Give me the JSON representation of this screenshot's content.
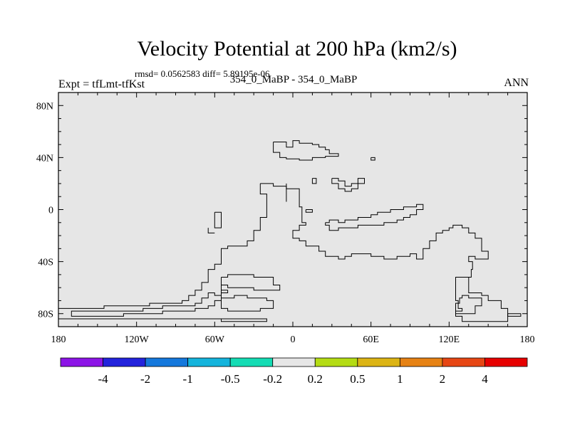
{
  "chart_data": {
    "type": "contour-map",
    "title": "Velocity Potential at 200 hPa (km2/s)",
    "stats": "rmsd= 0.0562583 diff= 5.89195e-06",
    "left_label": "Expt = tfLmt-tfKst",
    "center_label": "354_0_MaBP - 354_0_MaBP",
    "right_label": "ANN",
    "x_ticks": [
      {
        "value": -180,
        "label": "180"
      },
      {
        "value": -120,
        "label": "120W"
      },
      {
        "value": -60,
        "label": "60W"
      },
      {
        "value": 0,
        "label": "0"
      },
      {
        "value": 60,
        "label": "60E"
      },
      {
        "value": 120,
        "label": "120E"
      },
      {
        "value": 180,
        "label": "180"
      }
    ],
    "y_ticks": [
      {
        "value": 80,
        "label": "80N"
      },
      {
        "value": 40,
        "label": "40N"
      },
      {
        "value": 0,
        "label": "0"
      },
      {
        "value": -40,
        "label": "40S"
      },
      {
        "value": -80,
        "label": "80S"
      }
    ],
    "xlim": [
      -180,
      180
    ],
    "ylim": [
      -90,
      90
    ],
    "field_color": "#e6e6e6",
    "colorbar": {
      "colors": [
        "#8c14e6",
        "#2323dc",
        "#1478dc",
        "#14b4dc",
        "#14dcb4",
        "#e6e6e6",
        "#b4dc14",
        "#dcb414",
        "#e68214",
        "#e64614",
        "#e60000"
      ],
      "labels": [
        "-4",
        "-2",
        "-1",
        "-0.5",
        "-0.2",
        "0.2",
        "0.5",
        "1",
        "2",
        "4"
      ]
    },
    "contours": [
      [
        [
          -15,
          52
        ],
        [
          -5,
          52
        ],
        [
          -5,
          48
        ],
        [
          0,
          48
        ],
        [
          0,
          53
        ],
        [
          5,
          53
        ],
        [
          5,
          51
        ],
        [
          15,
          51
        ],
        [
          15,
          50
        ],
        [
          20,
          50
        ],
        [
          20,
          48
        ],
        [
          25,
          48
        ],
        [
          25,
          46
        ],
        [
          28,
          46
        ],
        [
          28,
          43
        ],
        [
          35,
          43
        ],
        [
          35,
          41
        ],
        [
          25,
          41
        ],
        [
          25,
          40
        ],
        [
          15,
          40
        ],
        [
          15,
          38
        ],
        [
          5,
          38
        ],
        [
          5,
          39
        ],
        [
          -5,
          39
        ],
        [
          -5,
          40
        ],
        [
          -10,
          40
        ],
        [
          -10,
          44
        ],
        [
          -15,
          44
        ],
        [
          -15,
          52
        ]
      ],
      [
        [
          60,
          40
        ],
        [
          63,
          40
        ],
        [
          63,
          38
        ],
        [
          60,
          38
        ],
        [
          60,
          40
        ]
      ],
      [
        [
          -25,
          20
        ],
        [
          -15,
          20
        ],
        [
          -15,
          18
        ],
        [
          -5,
          18
        ],
        [
          -5,
          16
        ],
        [
          5,
          16
        ],
        [
          5,
          2
        ],
        [
          7,
          2
        ],
        [
          7,
          -10
        ],
        [
          10,
          -10
        ],
        [
          10,
          -12
        ],
        [
          5,
          -12
        ],
        [
          5,
          -16
        ],
        [
          0,
          -16
        ],
        [
          0,
          -22
        ],
        [
          5,
          -22
        ],
        [
          5,
          -24
        ],
        [
          10,
          -24
        ],
        [
          10,
          -28
        ],
        [
          20,
          -28
        ],
        [
          20,
          -32
        ],
        [
          25,
          -32
        ],
        [
          25,
          -36
        ],
        [
          35,
          -36
        ],
        [
          35,
          -38
        ],
        [
          40,
          -38
        ],
        [
          40,
          -36
        ],
        [
          45,
          -36
        ],
        [
          45,
          -34
        ],
        [
          60,
          -34
        ],
        [
          60,
          -36
        ],
        [
          70,
          -36
        ],
        [
          70,
          -38
        ],
        [
          80,
          -38
        ],
        [
          80,
          -36
        ],
        [
          90,
          -36
        ],
        [
          90,
          -34
        ],
        [
          95,
          -34
        ],
        [
          95,
          -38
        ],
        [
          100,
          -38
        ],
        [
          100,
          -30
        ],
        [
          105,
          -30
        ],
        [
          105,
          -24
        ],
        [
          110,
          -24
        ],
        [
          110,
          -18
        ],
        [
          115,
          -18
        ],
        [
          115,
          -16
        ],
        [
          120,
          -16
        ],
        [
          120,
          -14
        ],
        [
          123,
          -14
        ],
        [
          123,
          -12
        ],
        [
          130,
          -12
        ],
        [
          130,
          -14
        ],
        [
          135,
          -14
        ],
        [
          135,
          -18
        ],
        [
          140,
          -18
        ],
        [
          140,
          -22
        ],
        [
          145,
          -22
        ],
        [
          145,
          -32
        ],
        [
          150,
          -32
        ],
        [
          150,
          -38
        ],
        [
          140,
          -38
        ],
        [
          140,
          -36
        ],
        [
          135,
          -36
        ],
        [
          135,
          -40
        ],
        [
          138,
          -40
        ],
        [
          138,
          -46
        ],
        [
          137,
          -46
        ],
        [
          137,
          -52
        ],
        [
          125,
          -52
        ],
        [
          125,
          -70
        ],
        [
          127,
          -70
        ],
        [
          127,
          -76
        ],
        [
          130,
          -76
        ],
        [
          130,
          -78
        ],
        [
          125,
          -78
        ],
        [
          125,
          -80
        ],
        [
          140,
          -80
        ],
        [
          140,
          -74
        ],
        [
          145,
          -74
        ],
        [
          145,
          -68
        ],
        [
          135,
          -68
        ],
        [
          135,
          -66
        ],
        [
          130,
          -66
        ],
        [
          130,
          -68
        ],
        [
          128,
          -68
        ],
        [
          128,
          -72
        ],
        [
          125,
          -72
        ],
        [
          125,
          -82
        ],
        [
          130,
          -82
        ],
        [
          130,
          -86
        ],
        [
          165,
          -86
        ],
        [
          165,
          -76
        ],
        [
          160,
          -76
        ],
        [
          160,
          -70
        ],
        [
          150,
          -70
        ],
        [
          150,
          -66
        ],
        [
          145,
          -66
        ],
        [
          145,
          -64
        ],
        [
          135,
          -64
        ],
        [
          135,
          -52
        ],
        [
          125,
          -52
        ]
      ],
      [
        [
          165,
          -80
        ],
        [
          175,
          -80
        ],
        [
          175,
          -82
        ],
        [
          165,
          -82
        ],
        [
          165,
          -80
        ]
      ],
      [
        [
          -180,
          -76
        ],
        [
          -145,
          -76
        ],
        [
          -145,
          -74
        ],
        [
          -110,
          -74
        ],
        [
          -110,
          -72
        ],
        [
          -85,
          -72
        ],
        [
          -85,
          -70
        ],
        [
          -80,
          -70
        ],
        [
          -80,
          -66
        ],
        [
          -75,
          -66
        ],
        [
          -75,
          -62
        ],
        [
          -70,
          -62
        ],
        [
          -70,
          -56
        ],
        [
          -65,
          -56
        ],
        [
          -65,
          -46
        ],
        [
          -60,
          -46
        ],
        [
          -60,
          -42
        ],
        [
          -55,
          -42
        ],
        [
          -55,
          -30
        ],
        [
          -50,
          -30
        ],
        [
          -50,
          -28
        ],
        [
          -35,
          -28
        ],
        [
          -35,
          -24
        ],
        [
          -30,
          -24
        ],
        [
          -30,
          -16
        ],
        [
          -25,
          -16
        ],
        [
          -25,
          -6
        ],
        [
          -20,
          -6
        ],
        [
          -20,
          12
        ],
        [
          -25,
          12
        ],
        [
          -25,
          20
        ]
      ],
      [
        [
          -55,
          -52
        ],
        [
          -50,
          -52
        ],
        [
          -50,
          -50
        ],
        [
          -30,
          -50
        ],
        [
          -30,
          -52
        ],
        [
          -15,
          -52
        ],
        [
          -15,
          -58
        ],
        [
          -10,
          -58
        ],
        [
          -10,
          -62
        ],
        [
          -30,
          -62
        ],
        [
          -30,
          -60
        ],
        [
          -50,
          -60
        ],
        [
          -50,
          -58
        ],
        [
          -55,
          -58
        ],
        [
          -55,
          -66
        ],
        [
          -60,
          -66
        ],
        [
          -60,
          -64
        ],
        [
          -65,
          -64
        ],
        [
          -65,
          -68
        ],
        [
          -70,
          -68
        ],
        [
          -70,
          -72
        ],
        [
          -75,
          -72
        ],
        [
          -75,
          -74
        ],
        [
          -100,
          -74
        ],
        [
          -100,
          -76
        ],
        [
          -115,
          -76
        ],
        [
          -115,
          -78
        ],
        [
          -170,
          -78
        ],
        [
          -170,
          -82
        ],
        [
          -130,
          -82
        ],
        [
          -130,
          -80
        ],
        [
          -100,
          -80
        ],
        [
          -100,
          -78
        ],
        [
          -75,
          -78
        ],
        [
          -75,
          -76
        ],
        [
          -65,
          -76
        ],
        [
          -65,
          -74
        ],
        [
          -60,
          -74
        ],
        [
          -60,
          -70
        ],
        [
          -55,
          -70
        ],
        [
          -55,
          -64
        ],
        [
          -50,
          -64
        ],
        [
          -50,
          -62
        ],
        [
          -55,
          -62
        ],
        [
          -55,
          -52
        ]
      ],
      [
        [
          -55,
          -68
        ],
        [
          -45,
          -68
        ],
        [
          -45,
          -66
        ],
        [
          -35,
          -66
        ],
        [
          -35,
          -68
        ],
        [
          -20,
          -68
        ],
        [
          -20,
          -70
        ],
        [
          -15,
          -70
        ],
        [
          -15,
          -76
        ],
        [
          -25,
          -76
        ],
        [
          -25,
          -78
        ],
        [
          -50,
          -78
        ],
        [
          -50,
          -76
        ],
        [
          -55,
          -76
        ],
        [
          -55,
          -68
        ]
      ],
      [
        [
          -180,
          -84
        ],
        [
          -55,
          -84
        ],
        [
          -55,
          -86
        ],
        [
          -20,
          -86
        ],
        [
          -20,
          -84
        ],
        [
          -55,
          -84
        ]
      ],
      [
        [
          -60,
          -2
        ],
        [
          -55,
          -2
        ],
        [
          -55,
          -14
        ],
        [
          -60,
          -14
        ],
        [
          -60,
          -2
        ]
      ],
      [
        [
          -65,
          -14
        ],
        [
          -65,
          -18
        ],
        [
          -60,
          -18
        ]
      ],
      [
        [
          25,
          -10
        ],
        [
          28,
          -10
        ],
        [
          28,
          -8
        ],
        [
          35,
          -8
        ],
        [
          35,
          -10
        ],
        [
          40,
          -10
        ],
        [
          40,
          -8
        ],
        [
          50,
          -8
        ],
        [
          50,
          -6
        ],
        [
          60,
          -6
        ],
        [
          60,
          -4
        ],
        [
          65,
          -4
        ],
        [
          65,
          -2
        ],
        [
          75,
          -2
        ],
        [
          75,
          0
        ],
        [
          85,
          0
        ],
        [
          85,
          2
        ],
        [
          95,
          2
        ],
        [
          95,
          4
        ],
        [
          100,
          4
        ],
        [
          100,
          0
        ],
        [
          95,
          0
        ],
        [
          95,
          -4
        ],
        [
          90,
          -4
        ],
        [
          90,
          -6
        ],
        [
          85,
          -6
        ],
        [
          85,
          -8
        ],
        [
          80,
          -8
        ],
        [
          80,
          -10
        ],
        [
          70,
          -10
        ],
        [
          70,
          -12
        ],
        [
          50,
          -12
        ],
        [
          50,
          -14
        ],
        [
          35,
          -14
        ],
        [
          35,
          -16
        ],
        [
          28,
          -16
        ],
        [
          28,
          -12
        ],
        [
          25,
          -12
        ],
        [
          25,
          -10
        ]
      ],
      [
        [
          30,
          24
        ],
        [
          35,
          24
        ],
        [
          35,
          22
        ],
        [
          40,
          22
        ],
        [
          40,
          18
        ],
        [
          45,
          18
        ],
        [
          45,
          20
        ],
        [
          50,
          20
        ],
        [
          50,
          24
        ],
        [
          55,
          24
        ],
        [
          55,
          20
        ],
        [
          50,
          20
        ],
        [
          50,
          16
        ],
        [
          45,
          16
        ],
        [
          45,
          14
        ],
        [
          40,
          14
        ],
        [
          40,
          16
        ],
        [
          35,
          16
        ],
        [
          35,
          20
        ],
        [
          30,
          20
        ],
        [
          30,
          24
        ]
      ],
      [
        [
          15,
          24
        ],
        [
          18,
          24
        ],
        [
          18,
          20
        ],
        [
          15,
          20
        ],
        [
          15,
          24
        ]
      ],
      [
        [
          10,
          0
        ],
        [
          15,
          0
        ],
        [
          15,
          -2
        ],
        [
          10,
          -2
        ],
        [
          10,
          0
        ]
      ],
      [
        [
          -5,
          20
        ],
        [
          -5,
          6
        ]
      ]
    ]
  }
}
